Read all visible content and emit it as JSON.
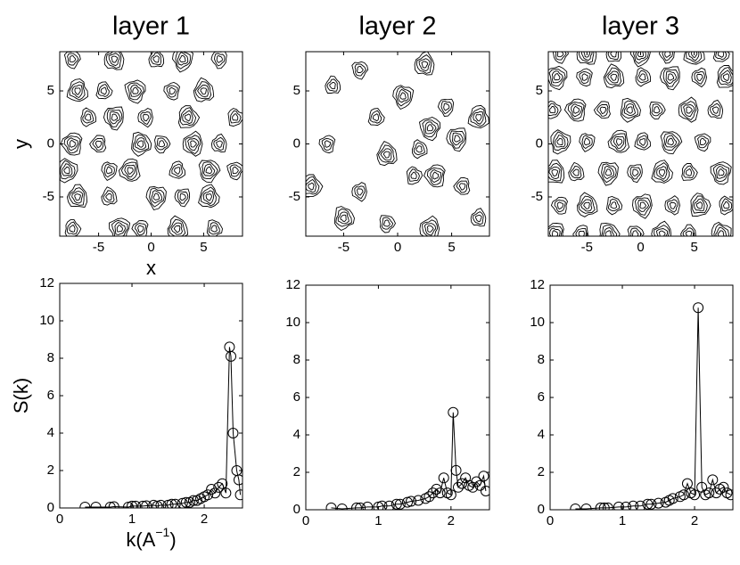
{
  "chart_data": [
    {
      "type": "contour",
      "title": "layer 1",
      "xlabel": "x",
      "ylabel": "y",
      "xlim": [
        -8.7,
        8.7
      ],
      "ylim": [
        -8.7,
        8.7
      ],
      "xticks": [
        -5,
        0,
        5
      ],
      "yticks": [
        -5,
        0,
        5
      ],
      "x": [
        -7.5,
        -3.5,
        0.5,
        3,
        6.5,
        -7,
        -4.5,
        -1.5,
        2,
        5,
        -6,
        -3.5,
        -0.5,
        3.5,
        8,
        -7.5,
        -5,
        -1,
        1,
        4,
        6.5,
        -8,
        -4,
        -2,
        2.5,
        5.5,
        8,
        -7,
        -4,
        0.5,
        3,
        5.5,
        -7.5,
        -3,
        -1,
        2.5,
        6
      ],
      "y": [
        8,
        8,
        8,
        8,
        8,
        5,
        5,
        5,
        5,
        5,
        2.5,
        2.5,
        2.5,
        2.5,
        2.5,
        0,
        0,
        0,
        0,
        0,
        0,
        -2.5,
        -2.5,
        -2.5,
        -2.5,
        -2.5,
        -2.5,
        -5,
        -5,
        -5,
        -5,
        -5,
        -8,
        -8,
        -8,
        -8,
        -8
      ]
    },
    {
      "type": "contour",
      "title": "layer 2",
      "xlim": [
        -8.5,
        8.5
      ],
      "ylim": [
        -8.7,
        8.7
      ],
      "xticks": [
        -5,
        0,
        5
      ],
      "yticks": [
        -5,
        0,
        5
      ],
      "x": [
        -3.5,
        2.5,
        -6,
        0.5,
        4.5,
        7.5,
        -2,
        3,
        -6.5,
        -1,
        2,
        5.5,
        -3.5,
        -8,
        1.5,
        3.5,
        6,
        -5,
        -1,
        3,
        7.5
      ],
      "y": [
        7,
        7.5,
        5.5,
        4.5,
        3.5,
        2.5,
        2.5,
        1.5,
        0,
        -1,
        -0.5,
        0.5,
        -4.5,
        -4,
        -3,
        -3,
        -4,
        -7,
        -7.5,
        -8,
        -7
      ]
    },
    {
      "type": "contour",
      "title": "layer 3",
      "xlim": [
        -8.6,
        8.6
      ],
      "ylim": [
        -8.7,
        8.7
      ],
      "xticks": [
        -5,
        0,
        5
      ],
      "yticks": [
        -5,
        0,
        5
      ],
      "x": [
        -7.5,
        -5,
        -2.5,
        0,
        2.5,
        5,
        7.5,
        -7.8,
        -5.2,
        -2.5,
        0.2,
        2.8,
        5.5,
        8,
        -8.2,
        -6,
        -3.5,
        -1,
        1.5,
        4.5,
        7,
        -7.5,
        -5,
        -2,
        0.2,
        2.8,
        5.8,
        -8,
        -6,
        -3,
        -0.5,
        2,
        4.5,
        7.5,
        -7.5,
        -5,
        -2.5,
        0.2,
        3,
        5.5,
        8,
        -8,
        -5.5,
        -3,
        -0.5,
        2,
        4.5,
        7.5
      ],
      "y": [
        8.5,
        8.5,
        8.5,
        8.5,
        8.5,
        8.5,
        8.5,
        6.3,
        6.3,
        6.3,
        6.3,
        6.3,
        6.3,
        6.3,
        3.2,
        3.2,
        3.2,
        3.2,
        3.2,
        3.2,
        3.2,
        0.2,
        0.2,
        0.2,
        0.2,
        0.2,
        0.2,
        -2.7,
        -2.7,
        -2.7,
        -2.7,
        -2.7,
        -2.7,
        -2.7,
        -5.8,
        -5.8,
        -5.8,
        -5.8,
        -5.8,
        -5.8,
        -5.8,
        -8.5,
        -8.5,
        -8.5,
        -8.5,
        -8.5,
        -8.5,
        -8.5
      ]
    },
    {
      "type": "line",
      "ylabel": "S(k)",
      "xlabel": "k(A",
      "xlabel_sup": "−1",
      "xlabel_end": ")",
      "xlim": [
        0,
        2.53
      ],
      "ylim": [
        0,
        12
      ],
      "xticks": [
        0,
        1,
        2
      ],
      "yticks": [
        0,
        2,
        4,
        6,
        8,
        10,
        12
      ],
      "x": [
        0.35,
        0.5,
        0.7,
        0.75,
        0.95,
        1.0,
        1.05,
        1.15,
        1.2,
        1.3,
        1.35,
        1.4,
        1.5,
        1.55,
        1.6,
        1.7,
        1.75,
        1.8,
        1.85,
        1.9,
        1.95,
        2.0,
        2.05,
        2.1,
        2.15,
        2.2,
        2.25,
        2.3,
        2.35,
        2.37,
        2.4,
        2.45,
        2.48,
        2.5
      ],
      "series": [
        {
          "color": "#000000",
          "values": [
            0.05,
            0.05,
            0.05,
            0.07,
            0.05,
            0.1,
            0.1,
            0.1,
            0.12,
            0.15,
            0.1,
            0.15,
            0.15,
            0.2,
            0.2,
            0.25,
            0.3,
            0.3,
            0.4,
            0.4,
            0.5,
            0.6,
            0.7,
            1.0,
            0.8,
            1.1,
            1.3,
            0.8,
            8.6,
            8.1,
            4.0,
            2.0,
            1.5,
            0.7
          ]
        }
      ]
    },
    {
      "type": "line",
      "xlim": [
        0,
        2.53
      ],
      "ylim": [
        0,
        12
      ],
      "xticks": [
        0,
        1,
        2
      ],
      "yticks": [
        0,
        2,
        4,
        6,
        8,
        10,
        12
      ],
      "x": [
        0.35,
        0.5,
        0.7,
        0.75,
        0.85,
        1.0,
        1.05,
        1.15,
        1.25,
        1.3,
        1.4,
        1.45,
        1.55,
        1.65,
        1.7,
        1.75,
        1.8,
        1.85,
        1.9,
        1.95,
        2.0,
        2.03,
        2.07,
        2.1,
        2.15,
        2.2,
        2.25,
        2.3,
        2.35,
        2.4,
        2.45,
        2.48
      ],
      "series": [
        {
          "color": "#000000",
          "values": [
            0.1,
            0.05,
            0.1,
            0.1,
            0.15,
            0.15,
            0.2,
            0.2,
            0.3,
            0.3,
            0.4,
            0.45,
            0.5,
            0.6,
            0.7,
            0.9,
            1.1,
            0.9,
            1.7,
            0.9,
            0.8,
            5.2,
            2.1,
            1.2,
            1.4,
            1.7,
            1.3,
            1.2,
            1.5,
            1.3,
            1.8,
            1.0
          ]
        }
      ]
    },
    {
      "type": "line",
      "xlim": [
        0,
        2.53
      ],
      "ylim": [
        0,
        12
      ],
      "xticks": [
        0,
        1,
        2
      ],
      "yticks": [
        0,
        2,
        4,
        6,
        8,
        10,
        12
      ],
      "x": [
        0.35,
        0.5,
        0.7,
        0.75,
        0.8,
        0.95,
        1.05,
        1.15,
        1.25,
        1.35,
        1.4,
        1.5,
        1.6,
        1.65,
        1.7,
        1.8,
        1.85,
        1.9,
        1.95,
        2.0,
        2.05,
        2.1,
        2.15,
        2.2,
        2.25,
        2.3,
        2.35,
        2.4,
        2.45,
        2.5
      ],
      "series": [
        {
          "color": "#000000",
          "values": [
            0.05,
            0.05,
            0.1,
            0.1,
            0.1,
            0.15,
            0.15,
            0.2,
            0.2,
            0.3,
            0.3,
            0.35,
            0.4,
            0.5,
            0.6,
            0.7,
            0.8,
            1.4,
            0.9,
            0.8,
            10.8,
            1.2,
            0.8,
            0.9,
            1.6,
            0.9,
            1.1,
            1.2,
            0.9,
            0.8
          ]
        }
      ]
    }
  ]
}
